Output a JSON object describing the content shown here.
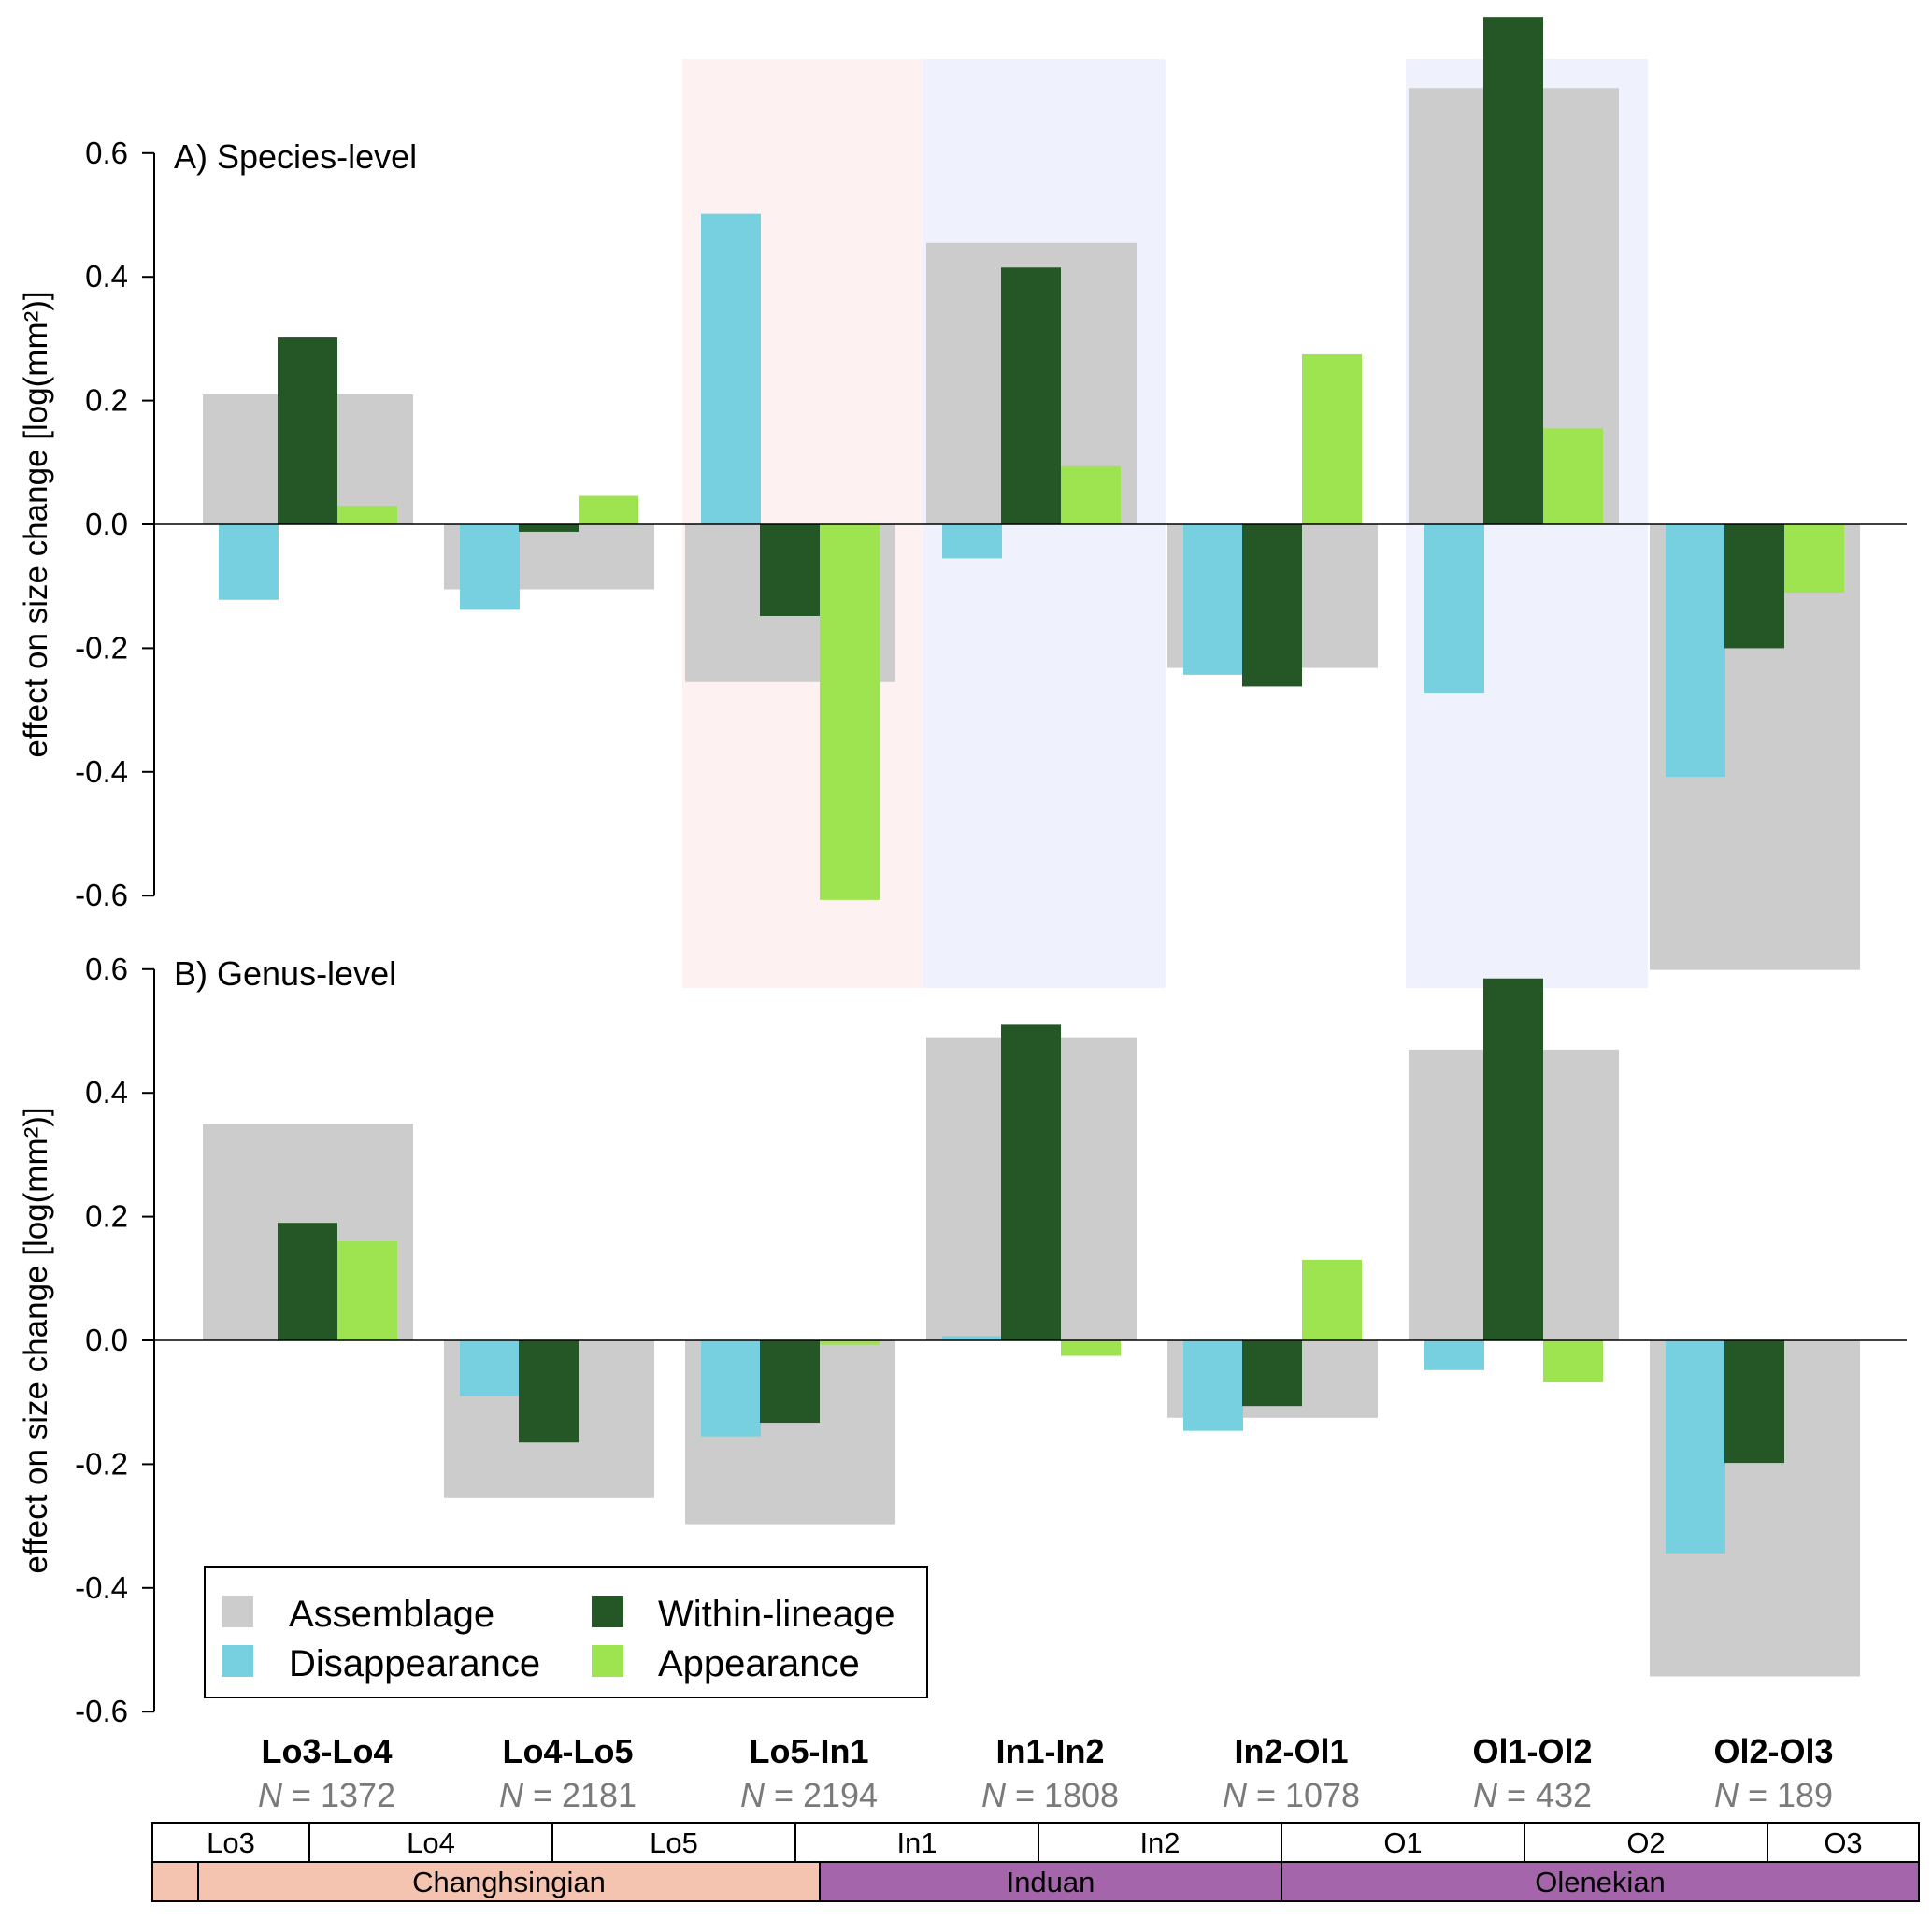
{
  "chart_data": {
    "type": "bar",
    "ylabel": "effect on size change [log(mm²)]",
    "ylim": [
      -0.6,
      0.6
    ],
    "yticks": [
      0.6,
      0.4,
      0.2,
      0.0,
      -0.2,
      -0.4,
      -0.6
    ],
    "ytick_labels": [
      "0.6",
      "0.4",
      "0.2",
      "0.0",
      "-0.2",
      "-0.4",
      "-0.6"
    ],
    "intervals": [
      {
        "label": "Lo3-Lo4",
        "n_prefix": "N",
        "n_value": "= 1372"
      },
      {
        "label": "Lo4-Lo5",
        "n_prefix": "N",
        "n_value": "= 2181"
      },
      {
        "label": "Lo5-In1",
        "n_prefix": "N",
        "n_value": "= 2194"
      },
      {
        "label": "In1-In2",
        "n_prefix": "N",
        "n_value": "= 1808"
      },
      {
        "label": "In2-Ol1",
        "n_prefix": "N",
        "n_value": "= 1078"
      },
      {
        "label": "Ol1-Ol2",
        "n_prefix": "N",
        "n_value": "= 432"
      },
      {
        "label": "Ol2-Ol3",
        "n_prefix": "N",
        "n_value": "= 189"
      }
    ],
    "highlights": [
      {
        "interval": 2,
        "color": "#fdf1f1"
      },
      {
        "interval": 3,
        "color": "#eff1fc"
      },
      {
        "interval": 5,
        "color": "#eff1fc"
      }
    ],
    "series_styles": [
      {
        "key": "assemblage",
        "name": "Assemblage",
        "color": "#cccccc"
      },
      {
        "key": "disappearance",
        "name": "Disappearance",
        "color": "#76d0e0"
      },
      {
        "key": "within",
        "name": "Within-lineage",
        "color": "#255726"
      },
      {
        "key": "appearance",
        "name": "Appearance",
        "color": "#9ee350"
      }
    ],
    "panels": [
      {
        "title": "A) Species-level",
        "assemblage": [
          0.21,
          -0.105,
          -0.255,
          0.455,
          -0.232,
          0.705,
          -0.72
        ],
        "disappearance": [
          -0.122,
          -0.138,
          0.502,
          -0.055,
          -0.243,
          -0.272,
          -0.408
        ],
        "within": [
          0.302,
          -0.012,
          -0.148,
          0.415,
          -0.262,
          0.82,
          -0.2
        ],
        "appearance": [
          0.03,
          0.046,
          -0.607,
          0.094,
          0.275,
          0.155,
          -0.11
        ]
      },
      {
        "title": "B) Genus-level",
        "assemblage": [
          0.35,
          -0.255,
          -0.297,
          0.49,
          -0.125,
          0.47,
          -0.543
        ],
        "disappearance": [
          0.0,
          -0.09,
          -0.155,
          0.007,
          -0.146,
          -0.048,
          -0.344
        ],
        "within": [
          0.19,
          -0.165,
          -0.133,
          0.51,
          -0.106,
          0.585,
          -0.198
        ],
        "appearance": [
          0.16,
          0.0,
          -0.007,
          -0.025,
          0.13,
          -0.067,
          0.0
        ]
      }
    ]
  },
  "stratigraphy": {
    "substages": [
      {
        "label": "Lo3"
      },
      {
        "label": "Lo4"
      },
      {
        "label": "Lo5"
      },
      {
        "label": "In1"
      },
      {
        "label": "In2"
      },
      {
        "label": "O1"
      },
      {
        "label": "O2"
      },
      {
        "label": "O3"
      }
    ],
    "stages": [
      {
        "label": "",
        "color": "#f4c4b1"
      },
      {
        "label": "Changhsingian",
        "color": "#f4c4b1"
      },
      {
        "label": "Induan",
        "color": "#a465aa"
      },
      {
        "label": "Olenekian",
        "color": "#a465aa"
      }
    ]
  }
}
